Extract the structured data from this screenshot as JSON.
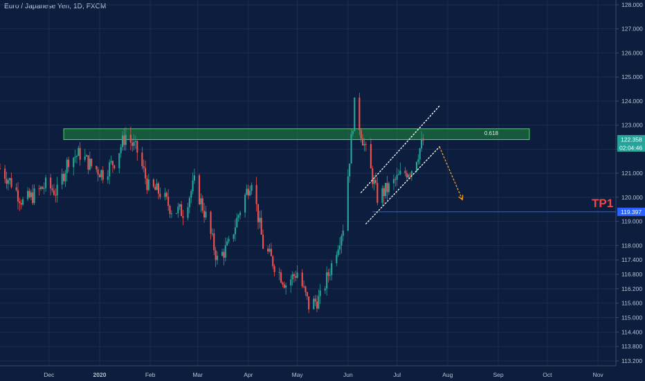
{
  "header": {
    "title": "Euro / Japanese Yen, 1D, FXCM"
  },
  "colors": {
    "background": "#0c1d3d",
    "grid": "#1d2e50",
    "up": "#26a69a",
    "down": "#ef5350",
    "zone_fill": "#1f8a3c",
    "zone_border": "#4cd964",
    "price_tag": "#26a69a",
    "tp_line": "#2962ff",
    "tp_label": "#f04848",
    "trend_line": "#ffffff",
    "arrow": "#ff9800"
  },
  "chart_data": {
    "type": "candlestick",
    "title": "Euro / Japanese Yen, 1D, FXCM",
    "ylim": [
      113.0,
      128.2
    ],
    "y_ticks": [
      "128.000",
      "127.000",
      "126.000",
      "125.000",
      "124.000",
      "123.000",
      "122.000",
      "121.000",
      "120.000",
      "119.000",
      "118.000",
      "117.400",
      "116.800",
      "116.200",
      "115.600",
      "115.000",
      "114.400",
      "113.800",
      "113.200"
    ],
    "y_tick_values": [
      128.0,
      127.0,
      126.0,
      125.0,
      124.0,
      123.0,
      122.0,
      121.0,
      120.0,
      119.0,
      118.0,
      117.4,
      116.8,
      116.2,
      115.6,
      115.0,
      114.4,
      113.8,
      113.2
    ],
    "x_ticks": [
      "Dec",
      "2020",
      "Feb",
      "Mar",
      "Apr",
      "May",
      "Jun",
      "Jul",
      "Aug",
      "Sep",
      "Oct",
      "Nov"
    ],
    "x_tick_dates": [
      "2019-12-01",
      "2020-01-01",
      "2020-02-01",
      "2020-03-01",
      "2020-04-01",
      "2020-05-01",
      "2020-06-01",
      "2020-07-01",
      "2020-08-01",
      "2020-09-01",
      "2020-10-01",
      "2020-11-01"
    ],
    "xlim": [
      "2019-11-01",
      "2020-11-12"
    ],
    "key_points": [
      {
        "date": "2019-11-01",
        "close": 121.2
      },
      {
        "date": "2019-11-08",
        "close": 120.6
      },
      {
        "date": "2019-11-15",
        "close": 119.8
      },
      {
        "date": "2019-11-22",
        "close": 120.1
      },
      {
        "date": "2019-11-29",
        "close": 120.5
      },
      {
        "date": "2019-12-06",
        "close": 120.2
      },
      {
        "date": "2019-12-13",
        "close": 121.6
      },
      {
        "date": "2019-12-20",
        "close": 121.8
      },
      {
        "date": "2019-12-27",
        "close": 121.3
      },
      {
        "date": "2020-01-03",
        "close": 121.0
      },
      {
        "date": "2020-01-10",
        "close": 121.5
      },
      {
        "date": "2020-01-17",
        "close": 122.6
      },
      {
        "date": "2020-01-24",
        "close": 121.9
      },
      {
        "date": "2020-01-31",
        "close": 120.4
      },
      {
        "date": "2020-02-07",
        "close": 120.2
      },
      {
        "date": "2020-02-14",
        "close": 119.5
      },
      {
        "date": "2020-02-21",
        "close": 119.4
      },
      {
        "date": "2020-02-28",
        "close": 120.6
      },
      {
        "date": "2020-03-06",
        "close": 119.2
      },
      {
        "date": "2020-03-13",
        "close": 117.4
      },
      {
        "date": "2020-03-20",
        "close": 118.0
      },
      {
        "date": "2020-03-27",
        "close": 119.5
      },
      {
        "date": "2020-04-03",
        "close": 120.8
      },
      {
        "date": "2020-04-10",
        "close": 118.0
      },
      {
        "date": "2020-04-17",
        "close": 117.2
      },
      {
        "date": "2020-04-24",
        "close": 116.4
      },
      {
        "date": "2020-05-01",
        "close": 116.9
      },
      {
        "date": "2020-05-08",
        "close": 115.5
      },
      {
        "date": "2020-05-15",
        "close": 115.8
      },
      {
        "date": "2020-05-22",
        "close": 117.2
      },
      {
        "date": "2020-05-29",
        "close": 118.8
      },
      {
        "date": "2020-06-05",
        "close": 123.8
      },
      {
        "date": "2020-06-12",
        "close": 121.9
      },
      {
        "date": "2020-06-19",
        "close": 120.0
      },
      {
        "date": "2020-06-26",
        "close": 120.4
      },
      {
        "date": "2020-07-03",
        "close": 120.9
      },
      {
        "date": "2020-07-10",
        "close": 121.2
      },
      {
        "date": "2020-07-17",
        "close": 122.36
      }
    ],
    "resistance_zone": {
      "low": 122.4,
      "high": 122.85,
      "start": "2019-12-10",
      "end": "2020-09-20",
      "label": "0.618"
    },
    "current_price": {
      "value": "122.358",
      "countdown": "02:04:46"
    },
    "tp_level": {
      "value": "119.397",
      "label": "TP1",
      "start": "2020-06-16"
    },
    "channel_upper": {
      "from": [
        "2020-06-09",
        120.2
      ],
      "to": [
        "2020-07-27",
        123.8
      ]
    },
    "channel_lower": {
      "from": [
        "2020-06-12",
        118.9
      ],
      "to": [
        "2020-07-27",
        122.1
      ]
    },
    "projection_arrow": {
      "from": [
        "2020-07-27",
        122.1
      ],
      "to": [
        "2020-08-10",
        119.9
      ]
    }
  }
}
